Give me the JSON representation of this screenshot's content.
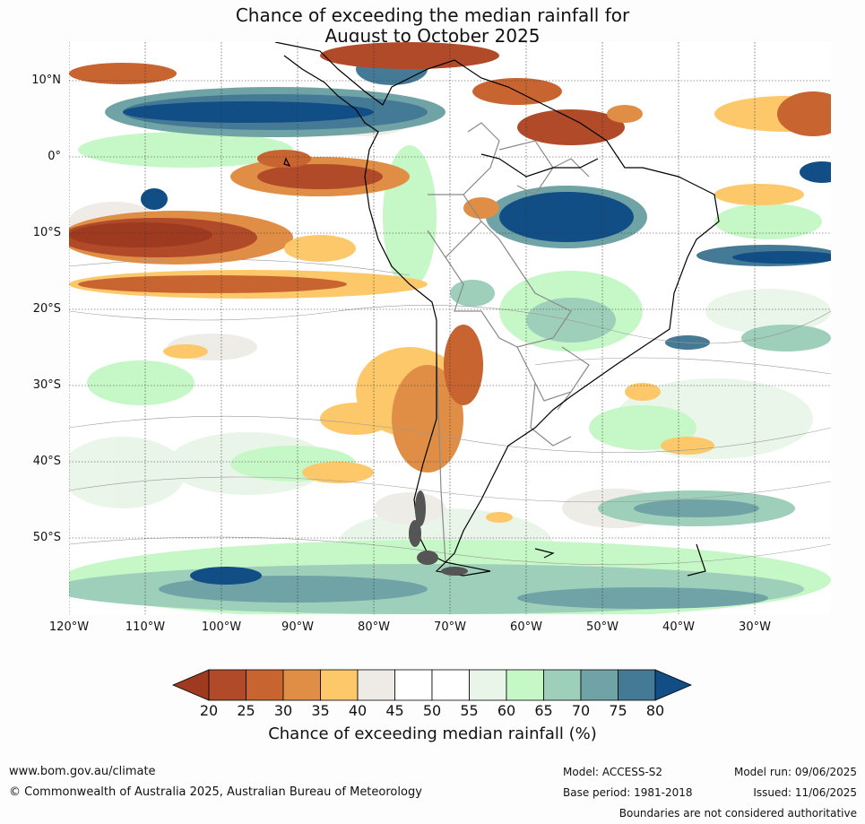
{
  "title_line1": "Chance of exceeding the median rainfall for",
  "title_line2": "August to October 2025",
  "lat_labels": [
    "10°N",
    "0°",
    "10°S",
    "20°S",
    "30°S",
    "40°S",
    "50°S"
  ],
  "lon_labels": [
    "120°W",
    "110°W",
    "100°W",
    "90°W",
    "80°W",
    "70°W",
    "60°W",
    "50°W",
    "40°W",
    "30°W"
  ],
  "colorbar": {
    "ticks": [
      "20",
      "25",
      "30",
      "35",
      "40",
      "45",
      "50",
      "55",
      "60",
      "65",
      "70",
      "75",
      "80"
    ],
    "colors": [
      "#9e3a20",
      "#b04a28",
      "#c86430",
      "#e08e45",
      "#fdc86a",
      "#eeebe6",
      "#ffffff",
      "#ffffff",
      "#e8f5e8",
      "#c6f7c6",
      "#9dcfba",
      "#6fa3a6",
      "#457a97",
      "#124e86"
    ],
    "label": "Chance of exceeding median rainfall (%)"
  },
  "footer": {
    "url": "www.bom.gov.au/climate",
    "copyright": "© Commonwealth of Australia 2025, Australian Bureau of Meteorology",
    "model": "Model: ACCESS-S2",
    "base_period": "Base period: 1981-2018",
    "model_run": "Model run: 09/06/2025",
    "issued": "Issued: 11/06/2025",
    "disclaimer": "Boundaries are not considered authoritative"
  }
}
